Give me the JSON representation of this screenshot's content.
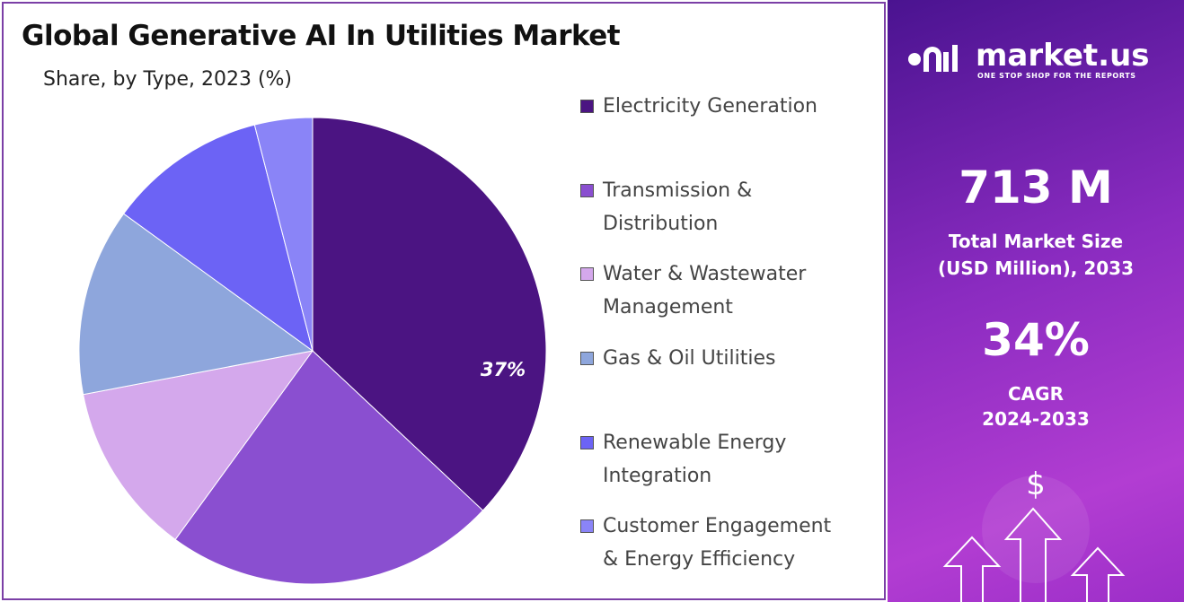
{
  "chart_data": {
    "type": "pie",
    "title": "Global Generative AI In Utilities Market",
    "subtitle": "Share, by Type, 2023 (%)",
    "categories": [
      "Electricity Generation",
      "Transmission & Distribution",
      "Water & Wastewater Management",
      "Gas & Oil Utilities",
      "Renewable Energy Integration",
      "Customer Engagement & Energy Efficiency"
    ],
    "values": [
      37,
      23,
      12,
      13,
      11,
      4
    ],
    "value_labels": [
      "37%",
      null,
      null,
      null,
      null,
      null
    ],
    "colors": [
      "#4b1482",
      "#8a4fd0",
      "#d4a8ec",
      "#8ea6dc",
      "#6c63f5",
      "#8a84f7"
    ],
    "legend": "right"
  },
  "panel": {
    "brand": "market.us",
    "tagline": "ONE STOP SHOP FOR THE REPORTS",
    "market_size": "713 M",
    "market_size_label": "Total Market Size (USD Million), 2033",
    "cagr": "34%",
    "cagr_label": "CAGR",
    "cagr_period": "2024-2033",
    "icon": "$"
  }
}
